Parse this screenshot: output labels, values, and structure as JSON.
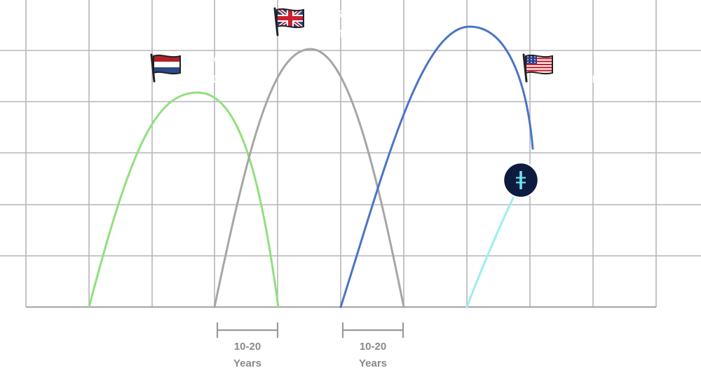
{
  "grid": {
    "line_color": "#b5b5bc",
    "axis_color": "#a9a9b0"
  },
  "currencies": [
    {
      "id": "dutch-guilder",
      "lines": [
        "Dutch",
        "Guilder"
      ],
      "color": "#90e07e",
      "icon": "netherlands-flag-icon"
    },
    {
      "id": "british-pound",
      "lines": [
        "British",
        "Pound"
      ],
      "color": "#a6a6a6",
      "icon": "uk-flag-icon"
    },
    {
      "id": "us-dollar",
      "lines": [
        "US",
        "Dollar"
      ],
      "color": "#4a75c4",
      "icon": "us-flag-icon"
    },
    {
      "id": "isc",
      "lines": [
        "ISC"
      ],
      "color": "#9ceeef",
      "icon": "isc-logo-icon",
      "logo_bg": "#0d1b3e",
      "logo_fg": "#6fe3ee"
    }
  ],
  "spans": [
    {
      "id": "span-1",
      "lines": [
        "10-20",
        "Years"
      ]
    },
    {
      "id": "span-2",
      "lines": [
        "10-20",
        "Years"
      ]
    }
  ],
  "span_color": "#9a9a9a"
}
